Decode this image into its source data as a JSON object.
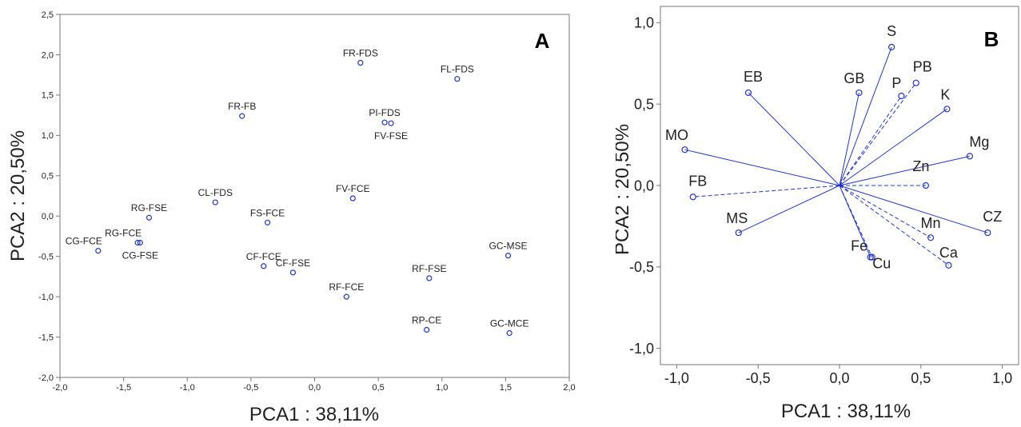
{
  "chart_data": [
    {
      "type": "scatter",
      "panel_label": "A",
      "xlabel": "PCA1 : 38,11%",
      "ylabel": "PCA2 : 20,50%",
      "xlim": [
        -2.0,
        2.0
      ],
      "ylim": [
        -2.0,
        2.5
      ],
      "xticks": [
        -2.0,
        -1.5,
        -1.0,
        -0.5,
        0.0,
        0.5,
        1.0,
        1.5,
        2.0
      ],
      "yticks": [
        -2.0,
        -1.5,
        -1.0,
        -0.5,
        0.0,
        0.5,
        1.0,
        1.5,
        2.0,
        2.5
      ],
      "xtick_labels": [
        "-2,0",
        "-1,5",
        "-1,0",
        "-0,5",
        "0,0",
        "0,5",
        "1,0",
        "1,5",
        "2,0"
      ],
      "ytick_labels": [
        "-2,0",
        "-1,5",
        "-1,0",
        "-0,5",
        "0,0",
        "0,5",
        "1,0",
        "1,5",
        "2,0",
        "2,5"
      ],
      "grid": false,
      "marker_color": "#2233cc",
      "points": [
        {
          "label": "FR-FDS",
          "x": 0.36,
          "y": 1.9
        },
        {
          "label": "FL-FDS",
          "x": 1.12,
          "y": 1.7
        },
        {
          "label": "FR-FB",
          "x": -0.57,
          "y": 1.24
        },
        {
          "label": "PI-FDS",
          "x": 0.55,
          "y": 1.16
        },
        {
          "label": "FV-FSE",
          "x": 0.6,
          "y": 1.15
        },
        {
          "label": "FV-FCE",
          "x": 0.3,
          "y": 0.22
        },
        {
          "label": "CL-FDS",
          "x": -0.78,
          "y": 0.17
        },
        {
          "label": "FS-FCE",
          "x": -0.37,
          "y": -0.08
        },
        {
          "label": "RG-FSE",
          "x": -1.3,
          "y": -0.02
        },
        {
          "label": "RG-FCE",
          "x": -1.39,
          "y": -0.33
        },
        {
          "label": "CG-FSE",
          "x": -1.37,
          "y": -0.33
        },
        {
          "label": "CG-FCE",
          "x": -1.7,
          "y": -0.43
        },
        {
          "label": "CF-FCE",
          "x": -0.4,
          "y": -0.62
        },
        {
          "label": "CF-FSE",
          "x": -0.17,
          "y": -0.7
        },
        {
          "label": "RF-FSE",
          "x": 0.9,
          "y": -0.77
        },
        {
          "label": "GC-MSE",
          "x": 1.52,
          "y": -0.49
        },
        {
          "label": "RF-FCE",
          "x": 0.25,
          "y": -1.0
        },
        {
          "label": "RP-CE",
          "x": 0.88,
          "y": -1.41
        },
        {
          "label": "GC-MCE",
          "x": 1.53,
          "y": -1.45
        }
      ]
    },
    {
      "type": "scatter",
      "panel_label": "B",
      "xlabel": "PCA1 : 38,11%",
      "ylabel": "PCA2 : 20,50%",
      "xlim": [
        -1.1,
        1.1
      ],
      "ylim": [
        -1.1,
        1.1
      ],
      "xticks": [
        -1.0,
        -0.5,
        0.0,
        0.5,
        1.0
      ],
      "yticks": [
        -1.0,
        -0.5,
        0.0,
        0.5,
        1.0
      ],
      "xtick_labels": [
        "-1,0",
        "-0,5",
        "0,0",
        "0,5",
        "1,0"
      ],
      "ytick_labels": [
        "-1,0",
        "-0,5",
        "0,0",
        "0,5",
        "1,0"
      ],
      "grid": false,
      "marker_color": "#2233cc",
      "loadings": [
        {
          "label": "S",
          "x": 0.32,
          "y": 0.85,
          "dashed": false
        },
        {
          "label": "PB",
          "x": 0.47,
          "y": 0.63,
          "dashed": true
        },
        {
          "label": "GB",
          "x": 0.12,
          "y": 0.57,
          "dashed": false
        },
        {
          "label": "P",
          "x": 0.38,
          "y": 0.55,
          "dashed": true
        },
        {
          "label": "EB",
          "x": -0.56,
          "y": 0.57,
          "dashed": false
        },
        {
          "label": "K",
          "x": 0.66,
          "y": 0.47,
          "dashed": false
        },
        {
          "label": "MO",
          "x": -0.95,
          "y": 0.22,
          "dashed": false
        },
        {
          "label": "Mg",
          "x": 0.8,
          "y": 0.18,
          "dashed": false
        },
        {
          "label": "Zn",
          "x": 0.53,
          "y": 0.0,
          "dashed": true
        },
        {
          "label": "FB",
          "x": -0.9,
          "y": -0.07,
          "dashed": true
        },
        {
          "label": "MS",
          "x": -0.62,
          "y": -0.29,
          "dashed": false
        },
        {
          "label": "CZ",
          "x": 0.91,
          "y": -0.29,
          "dashed": false
        },
        {
          "label": "Mn",
          "x": 0.56,
          "y": -0.32,
          "dashed": true
        },
        {
          "label": "Fe",
          "x": 0.19,
          "y": -0.44,
          "dashed": false
        },
        {
          "label": "Cu",
          "x": 0.2,
          "y": -0.44,
          "dashed": true
        },
        {
          "label": "Ca",
          "x": 0.67,
          "y": -0.49,
          "dashed": true
        }
      ]
    }
  ]
}
